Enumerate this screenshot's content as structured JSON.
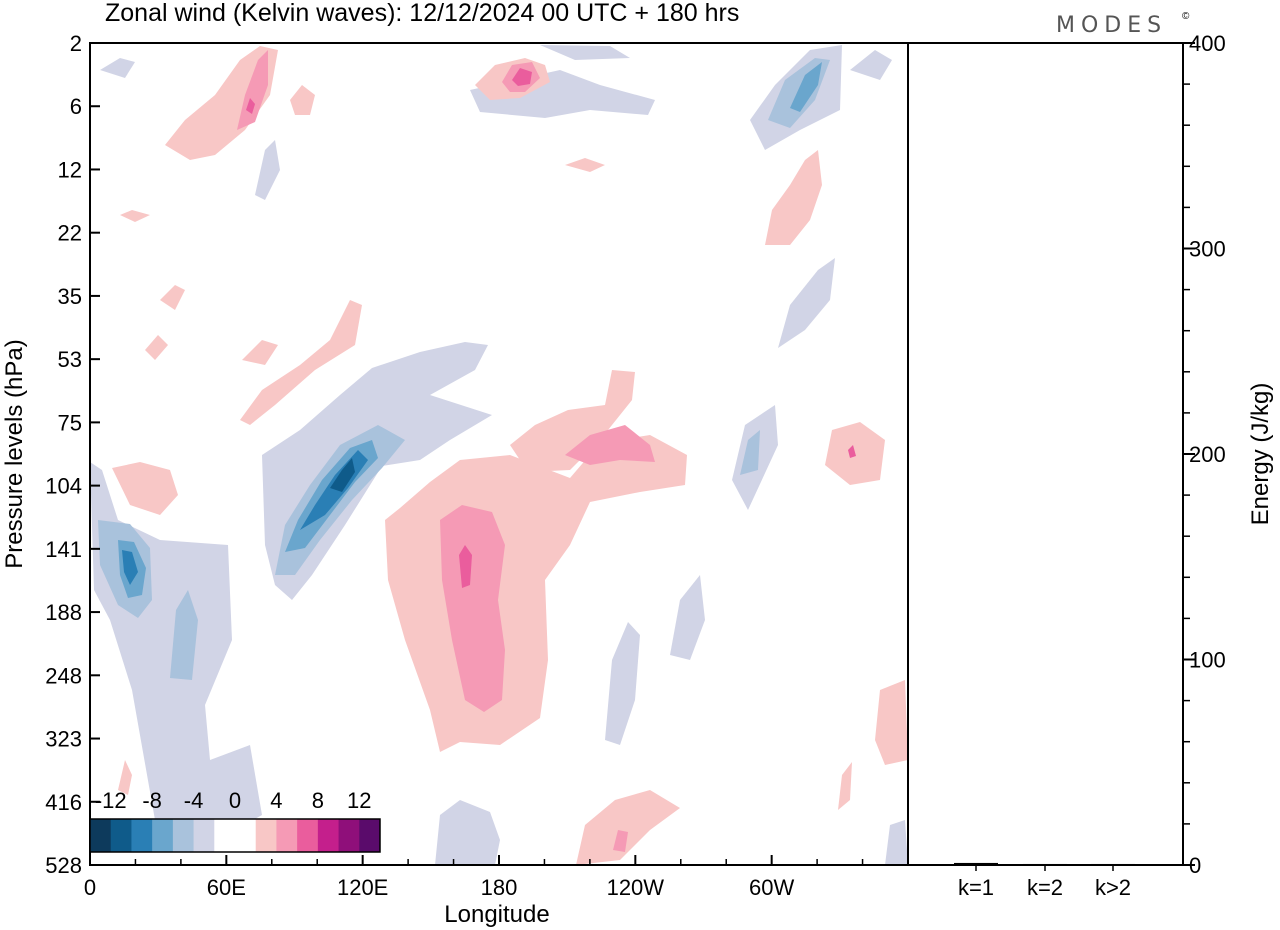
{
  "header": {
    "title": "Zonal wind (Kelvin waves):  12/12/2024  00 UTC  + 180 hrs",
    "brand": "MODES",
    "brand_mark": "©"
  },
  "colors": {
    "neg": [
      "#0d3a5c",
      "#0f5b8a",
      "#2a7fb5",
      "#6aa6cd",
      "#a9c2dc",
      "#d1d4e6"
    ],
    "zero": "#ffffff",
    "pos": [
      "#f8c7c6",
      "#f59ab5",
      "#ea5d9d",
      "#c41f8c",
      "#8f0f7a",
      "#5a0b6b"
    ],
    "axis": "#000000"
  },
  "chart_data": [
    {
      "type": "heatmap",
      "title": "Zonal wind (Kelvin waves):  12/12/2024  00 UTC  + 180 hrs",
      "xlabel": "Longitude",
      "ylabel": "Pressure levels (hPa)",
      "x_ticks": [
        "0",
        "60E",
        "120E",
        "180",
        "120W",
        "60W"
      ],
      "x_tick_degrees": [
        0,
        60,
        120,
        180,
        240,
        300
      ],
      "xlim_degrees": [
        0,
        360
      ],
      "y_ticks": [
        "2",
        "6",
        "12",
        "22",
        "35",
        "53",
        "75",
        "104",
        "141",
        "188",
        "248",
        "323",
        "416",
        "528"
      ],
      "ylim": [
        "2",
        "528"
      ],
      "colorbar": {
        "tick_labels": [
          "-12",
          "-8",
          "-4",
          "0",
          "4",
          "8",
          "12"
        ],
        "levels": [
          -14,
          -12,
          -10,
          -8,
          -6,
          -4,
          -2,
          2,
          4,
          6,
          8,
          10,
          12,
          14
        ]
      },
      "features": [
        {
          "sign": "neg",
          "level": 5,
          "lon": 17,
          "p": "141"
        },
        {
          "sign": "neg",
          "level": 4,
          "lon": 42,
          "p": "188"
        },
        {
          "sign": "neg",
          "level": 6,
          "lon": 105,
          "p": "104"
        },
        {
          "sign": "neg",
          "level": 4,
          "lon": 95,
          "p": "141"
        },
        {
          "sign": "pos",
          "level": 4,
          "lon": 167,
          "p": "141"
        },
        {
          "sign": "pos",
          "level": 3,
          "lon": 175,
          "p": "248"
        },
        {
          "sign": "pos",
          "level": 3,
          "lon": 228,
          "p": "104"
        },
        {
          "sign": "pos",
          "level": 3,
          "lon": 190,
          "p": "6"
        },
        {
          "sign": "pos",
          "level": 3,
          "lon": 75,
          "p": "6"
        },
        {
          "sign": "neg",
          "level": 3,
          "lon": 310,
          "p": "6"
        },
        {
          "sign": "neg",
          "level": 2,
          "lon": 290,
          "p": "104"
        },
        {
          "sign": "pos",
          "level": 2,
          "lon": 337,
          "p": "104"
        }
      ]
    },
    {
      "type": "bar",
      "categories": [
        "k=1",
        "k=2",
        "k>2"
      ],
      "values": [
        1,
        0.5,
        0.5
      ],
      "ylabel": "Energy (J/kg)",
      "ylim": [
        0,
        400
      ],
      "y_ticks": [
        0,
        100,
        200,
        300,
        400
      ]
    }
  ]
}
